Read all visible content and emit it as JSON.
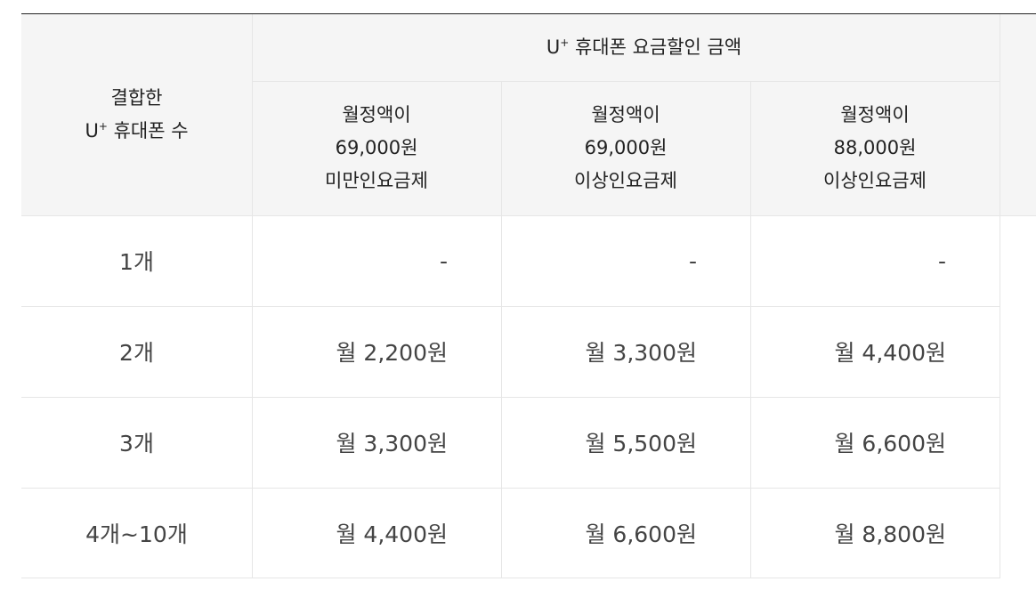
{
  "table": {
    "row_header": {
      "line1": "결합한",
      "line2_prefix": "U",
      "line2_sup": "+",
      "line2_suffix": " 휴대폰 수"
    },
    "group_header": {
      "prefix": "U",
      "sup": "+",
      "suffix": " 휴대폰 요금할인 금액"
    },
    "columns": [
      {
        "line1": "월정액이",
        "line2": "69,000원",
        "line3": "미만인요금제"
      },
      {
        "line1": "월정액이",
        "line2": "69,000원",
        "line3": "이상인요금제"
      },
      {
        "line1": "월정액이",
        "line2": "88,000원",
        "line3": "이상인요금제"
      }
    ],
    "rows": [
      {
        "label": "1개",
        "values": [
          "-",
          "-",
          "-"
        ]
      },
      {
        "label": "2개",
        "values": [
          "월 2,200원",
          "월 3,300원",
          "월 4,400원"
        ]
      },
      {
        "label": "3개",
        "values": [
          "월 3,300원",
          "월 5,500원",
          "월 6,600원"
        ]
      },
      {
        "label": "4개~10개",
        "values": [
          "월 4,400원",
          "월 6,600원",
          "월 8,800원"
        ]
      }
    ]
  }
}
